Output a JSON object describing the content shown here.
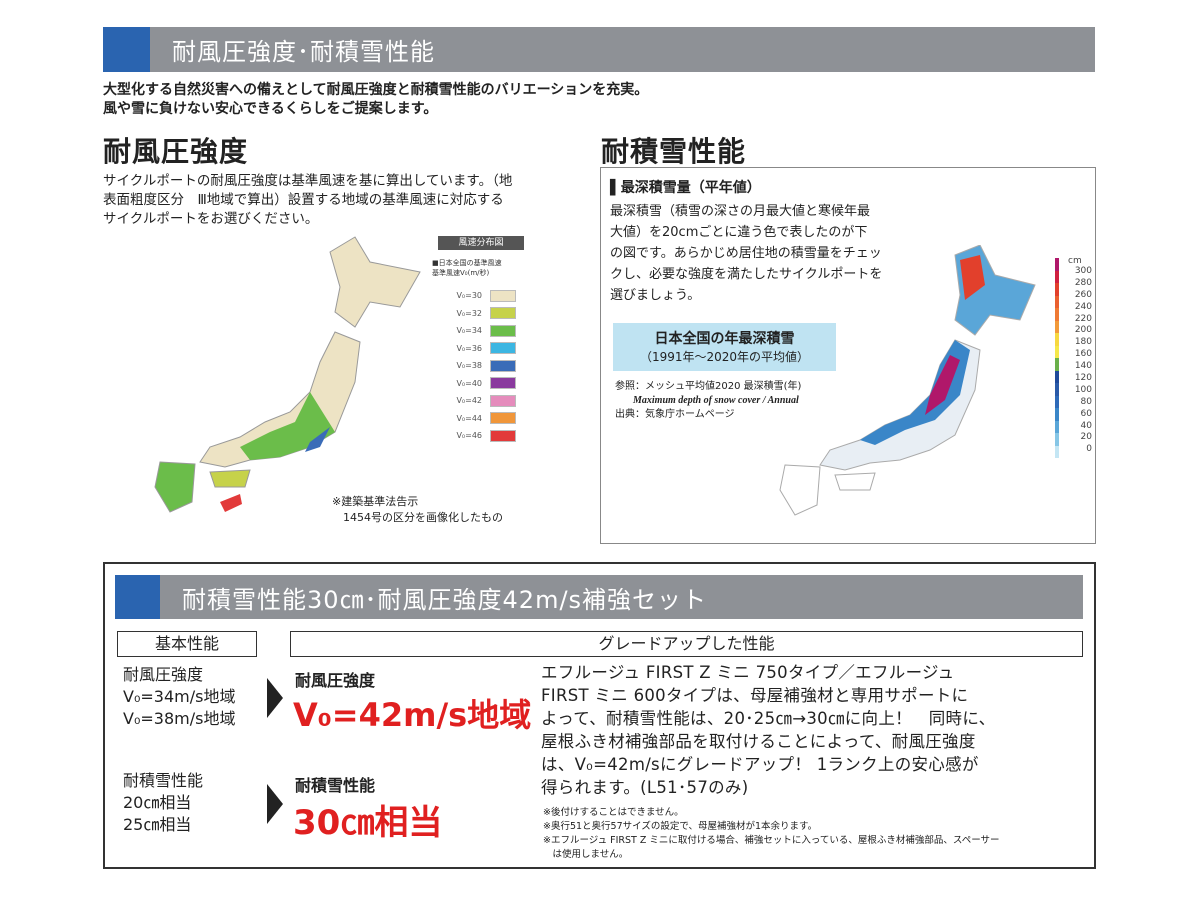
{
  "header": {
    "title": "耐風圧強度･耐積雪性能"
  },
  "intro": [
    "大型化する自然災害への備えとして耐風圧強度と耐積雪性能のバリエーションを充実。",
    "風や雪に負けない安心できるくらしをご提案します。"
  ],
  "wind": {
    "heading": "耐風圧強度",
    "body": [
      "サイクルポートの耐風圧強度は基準風速を基に算出しています。（地",
      "表面粗度区分　Ⅲ地域で算出）設置する地域の基準風速に対応する",
      "サイクルポートをお選びください。"
    ],
    "map_title": "風速分布図",
    "legend_title": "■日本全国の基準風速",
    "legend_sub": "基準風速V₀(m/秒)",
    "legend": [
      {
        "label": "V₀=30",
        "color": "#ede3c4"
      },
      {
        "label": "V₀=32",
        "color": "#c6d24a"
      },
      {
        "label": "V₀=34",
        "color": "#6bbd4a"
      },
      {
        "label": "V₀=36",
        "color": "#3cb6e2"
      },
      {
        "label": "V₀=38",
        "color": "#3a6cb8"
      },
      {
        "label": "V₀=40",
        "color": "#8a3a9e"
      },
      {
        "label": "V₀=42",
        "color": "#e58cbc"
      },
      {
        "label": "V₀=44",
        "color": "#f0963a"
      },
      {
        "label": "V₀=46",
        "color": "#e23a3a"
      }
    ],
    "note": [
      "※建築基準法告示",
      "　1454号の区分を画像化したもの"
    ]
  },
  "snow": {
    "heading": "耐積雪性能",
    "subheading": "▌最深積雪量（平年値）",
    "body": [
      "最深積雪（積雪の深さの月最大値と寒候年最",
      "大値）を20cmごとに違う色で表したのが下",
      "の図です。あらかじめ居住地の積雪量をチェッ",
      "クし、必要な強度を満たしたサイクルポートを",
      "選びましょう。"
    ],
    "box_title": "日本全国の年最深積雪",
    "box_sub": "（1991年～2020年の平均値）",
    "ref": "参照：メッシュ平均値2020 最深積雪(年)",
    "ref_en": "Maximum depth of snow cover / Annual",
    "source": "出典：気象庁ホームページ",
    "unit": "cm",
    "scale": [
      "300",
      "280",
      "260",
      "240",
      "220",
      "200",
      "180",
      "160",
      "140",
      "120",
      "100",
      "80",
      "60",
      "40",
      "20",
      "0"
    ],
    "scale_colors": [
      "#b0186a",
      "#d02040",
      "#e2402c",
      "#ea6030",
      "#ef7a34",
      "#f29a3a",
      "#f7d840",
      "#f5e84a",
      "#6ab04a",
      "#1f4a9a",
      "#2a5aa8",
      "#2e6ab8",
      "#3a86c8",
      "#5aa6d8",
      "#86c6e6",
      "#c4e6f4"
    ]
  },
  "set": {
    "title": "耐積雪性能30㎝･耐風圧強度42m/s補強セット",
    "basic_label": "基本性能",
    "upgrade_label": "グレードアップした性能",
    "basic_wind": [
      "耐風圧強度",
      "V₀=34m/s地域",
      "V₀=38m/s地域"
    ],
    "basic_snow": [
      "耐積雪性能",
      "20㎝相当",
      "25㎝相当"
    ],
    "up_wind_label": "耐風圧強度",
    "up_wind_value": "V₀=42m/s地域",
    "up_snow_label": "耐積雪性能",
    "up_snow_value": "30㎝相当",
    "desc": [
      "エフルージュ FIRST Z ミニ 750タイプ／エフルージュ",
      "FIRST ミニ 600タイプは、母屋補強材と専用サポートに",
      "よって、耐積雪性能は、20･25㎝→30㎝に向上！　同時に、",
      "屋根ふき材補強部品を取付けることによって、耐風圧強度",
      "は、V₀=42m/sにグレードアップ！ 1ランク上の安心感が",
      "得られます。(L51･57のみ)"
    ],
    "notes": [
      "※後付けすることはできません。",
      "※奥行51と奥行57サイズの設定で、母屋補強材が1本余ります。",
      "※エフルージュ FIRST Z ミニに取付ける場合、補強セットに入っている、屋根ふき材補強部品、スペーサー",
      "　は使用しません。"
    ]
  }
}
